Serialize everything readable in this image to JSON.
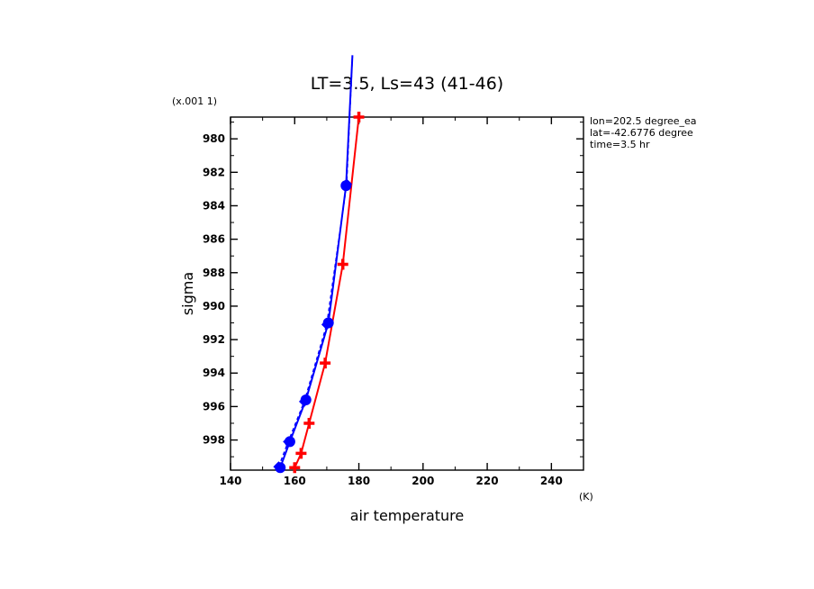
{
  "chart_data": {
    "type": "line",
    "title": "LT=3.5, Ls=43 (41-46)",
    "xlabel": "air temperature",
    "x_unit": "(K)",
    "ylabel": "sigma",
    "y_scale_note": "(x.001 1)",
    "xlim": [
      140,
      250
    ],
    "ylim": [
      999.8,
      978.7
    ],
    "x_ticks": [
      "140",
      "160",
      "180",
      "200",
      "220",
      "240"
    ],
    "y_ticks": [
      "980",
      "982",
      "984",
      "986",
      "988",
      "990",
      "992",
      "994",
      "996",
      "998"
    ],
    "grid": false,
    "info": [
      "lon=202.5 degree_ea",
      "lat=-42.6776 degree",
      "time=3.5 hr"
    ],
    "series": [
      {
        "color": "#ff0000",
        "marker": "plus",
        "points": [
          [
            160.0,
            999.65
          ],
          [
            162.0,
            998.8
          ],
          [
            164.5,
            997.0
          ],
          [
            169.5,
            993.4
          ],
          [
            175.0,
            987.5
          ],
          [
            180.0,
            978.7
          ]
        ]
      },
      {
        "color": "#0000ff",
        "marker": "circle",
        "points": [
          [
            155.5,
            999.65
          ],
          [
            158.5,
            998.1
          ],
          [
            163.5,
            995.6
          ],
          [
            170.5,
            991.0
          ],
          [
            176.0,
            982.8
          ],
          [
            178.0,
            975.0
          ]
        ]
      },
      {
        "color": "#0000ff",
        "marker": "diamond",
        "dashed": true,
        "points": [
          [
            155.0,
            999.6
          ],
          [
            158.0,
            998.1
          ],
          [
            163.0,
            995.7
          ],
          [
            170.0,
            991.1
          ],
          [
            176.2,
            982.7
          ],
          [
            178.0,
            975.0
          ]
        ]
      }
    ]
  }
}
